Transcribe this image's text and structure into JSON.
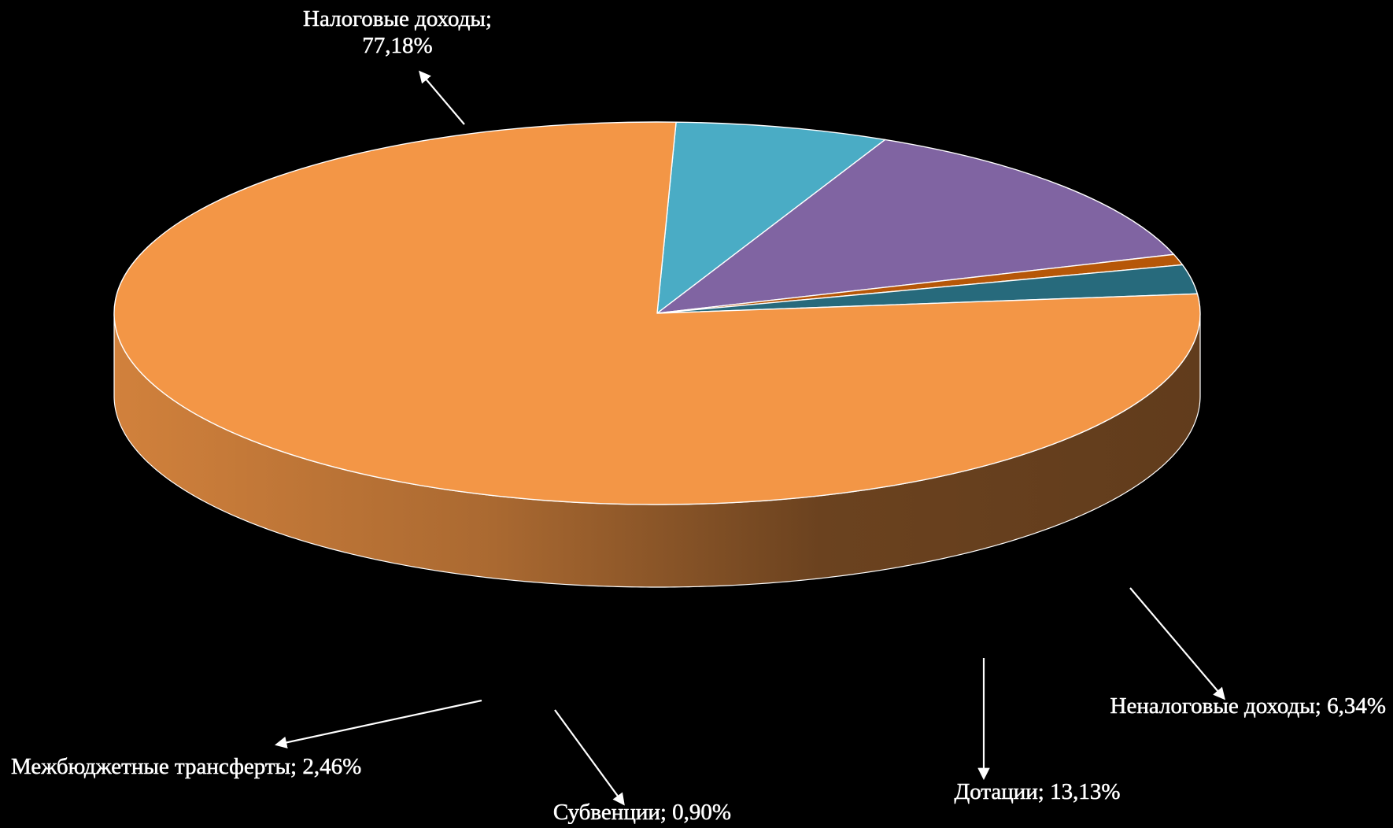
{
  "chart_data": {
    "type": "pie",
    "style": "3d",
    "title": "",
    "legend": "none",
    "categories": [
      "Налоговые доходы",
      "Неналоговые доходы",
      "Дотации",
      "Субвенции",
      "Межбюджетные трансферты"
    ],
    "values": [
      77.18,
      6.34,
      13.13,
      0.9,
      2.46
    ],
    "colors": [
      "#F39646",
      "#4AACC5",
      "#8064A2",
      "#B65708",
      "#276A7C"
    ],
    "data_labels": [
      [
        "Налоговые доходы;",
        "77,18%"
      ],
      [
        "Неналоговые доходы; 6,34%"
      ],
      [
        "Дотации; 13,13%"
      ],
      [
        "Субвенции; 0,90%"
      ],
      [
        "Межбюджетные трансферты; 2,46%"
      ]
    ]
  }
}
